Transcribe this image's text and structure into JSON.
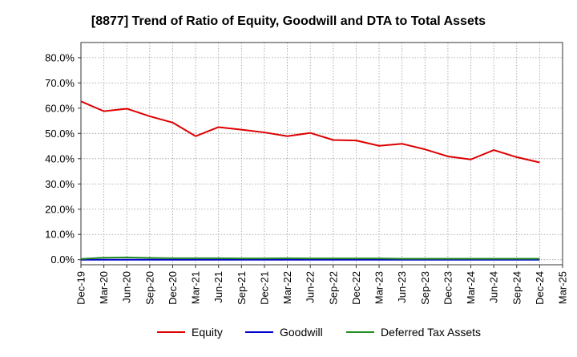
{
  "chart_data": {
    "type": "line",
    "title": "[8877]  Trend of Ratio of Equity, Goodwill and DTA to Total Assets",
    "xlabel": "",
    "ylabel": "",
    "ylim": [
      -0.02,
      0.86
    ],
    "yticks": [
      0.0,
      0.1,
      0.2,
      0.3,
      0.4,
      0.5,
      0.6,
      0.7,
      0.8
    ],
    "ytick_labels": [
      "0.0%",
      "10.0%",
      "20.0%",
      "30.0%",
      "40.0%",
      "50.0%",
      "60.0%",
      "70.0%",
      "80.0%"
    ],
    "x_tick_labels": [
      "Dec-19",
      "Mar-20",
      "Jun-20",
      "Sep-20",
      "Dec-20",
      "Mar-21",
      "Jun-21",
      "Sep-21",
      "Dec-21",
      "Mar-22",
      "Jun-22",
      "Sep-22",
      "Dec-22",
      "Mar-23",
      "Jun-23",
      "Sep-23",
      "Dec-23",
      "Mar-24",
      "Jun-24",
      "Sep-24",
      "Dec-24",
      "Mar-25"
    ],
    "categories": [
      "Dec-19",
      "Mar-20",
      "Jun-20",
      "Sep-20",
      "Dec-20",
      "Mar-21",
      "Jun-21",
      "Sep-21",
      "Dec-21",
      "Mar-22",
      "Jun-22",
      "Sep-22",
      "Dec-22",
      "Mar-23",
      "Jun-23",
      "Sep-23",
      "Dec-23",
      "Mar-24",
      "Jun-24",
      "Sep-24",
      "Dec-24"
    ],
    "grid": true,
    "legend_position": "bottom",
    "series": [
      {
        "name": "Equity",
        "color": "#dd0000",
        "values": [
          0.627,
          0.588,
          0.598,
          0.568,
          0.543,
          0.489,
          0.525,
          0.515,
          0.504,
          0.489,
          0.502,
          0.474,
          0.472,
          0.451,
          0.459,
          0.437,
          0.409,
          0.397,
          0.434,
          0.406,
          0.385
        ]
      },
      {
        "name": "Goodwill",
        "color": "#0000cc",
        "values": [
          0,
          0,
          0,
          0,
          0,
          0,
          0,
          0,
          0,
          0,
          0,
          0,
          0,
          0,
          0,
          0,
          0,
          0,
          0,
          0,
          0
        ]
      },
      {
        "name": "Deferred Tax Assets",
        "color": "#228b22",
        "values": [
          0.003,
          0.008,
          0.009,
          0.007,
          0.006,
          0.006,
          0.006,
          0.005,
          0.005,
          0.006,
          0.005,
          0.005,
          0.005,
          0.005,
          0.004,
          0.004,
          0.004,
          0.004,
          0.004,
          0.004,
          0.004
        ]
      }
    ]
  }
}
